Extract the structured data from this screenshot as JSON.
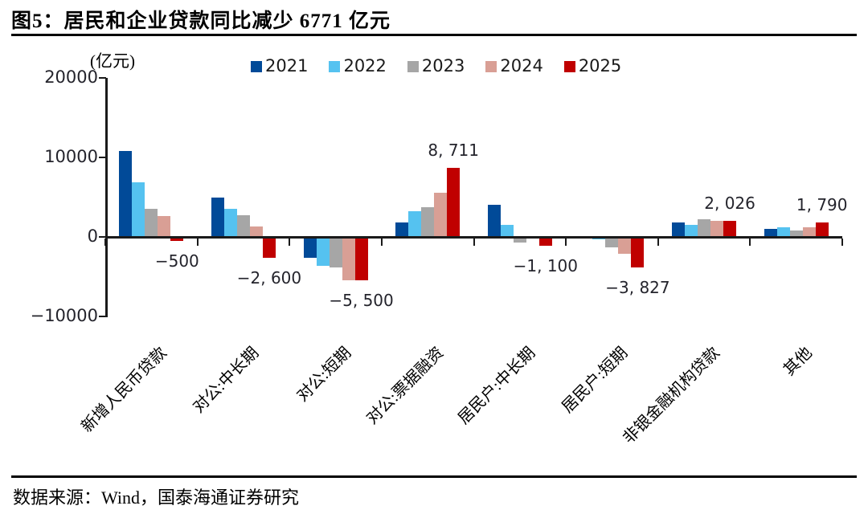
{
  "title": "图5：居民和企业贷款同比减少 6771 亿元",
  "source": "数据来源：Wind，国泰海通证券研究",
  "axis_unit": "(亿元)",
  "colors": {
    "y2021": "#014A98",
    "y2022": "#55C2F0",
    "y2023": "#A6A6A6",
    "y2024": "#D99F95",
    "y2025": "#C00000",
    "axis": "#1a1a1a"
  },
  "chart_data": {
    "type": "bar",
    "title": "图5：居民和企业贷款同比减少 6771 亿元",
    "ylabel": "(亿元)",
    "ylim": [
      -10000,
      20000
    ],
    "grid": false,
    "legend_position": "top-center",
    "yticks": [
      {
        "value": 20000,
        "label": "20000"
      },
      {
        "value": 10000,
        "label": "10000"
      },
      {
        "value": 0,
        "label": "0"
      },
      {
        "value": -10000,
        "label": "−10000"
      }
    ],
    "categories": [
      "新增人民币贷款",
      "对公:中长期",
      "对公:短期",
      "对公:票据融资",
      "居民户:中长期",
      "居民户:短期",
      "非银金融机构贷款",
      "其他"
    ],
    "series": [
      {
        "name": "2021",
        "color": "#014A98",
        "values": [
          10800,
          4900,
          -2600,
          1800,
          4000,
          100,
          1850,
          1000
        ]
      },
      {
        "name": "2022",
        "color": "#55C2F0",
        "values": [
          6900,
          3500,
          -3600,
          3200,
          1500,
          -300,
          1500,
          1200
        ]
      },
      {
        "name": "2023",
        "color": "#A6A6A6",
        "values": [
          3500,
          2700,
          -3800,
          3700,
          -700,
          -1300,
          2250,
          850
        ]
      },
      {
        "name": "2024",
        "color": "#D99F95",
        "values": [
          2600,
          1300,
          -5500,
          5600,
          100,
          -2100,
          2050,
          1200
        ]
      },
      {
        "name": "2025",
        "color": "#C00000",
        "values": [
          -500,
          -2600,
          -5500,
          8711,
          -1100,
          -3827,
          2026,
          1790
        ]
      }
    ],
    "annotations": [
      {
        "category_index": 0,
        "series_index": 4,
        "text": "−500",
        "position": "below"
      },
      {
        "category_index": 1,
        "series_index": 4,
        "text": "−2, 600",
        "position": "below"
      },
      {
        "category_index": 2,
        "series_index": 4,
        "text": "−5, 500",
        "position": "below"
      },
      {
        "category_index": 3,
        "series_index": 4,
        "text": "8, 711",
        "position": "above"
      },
      {
        "category_index": 4,
        "series_index": 4,
        "text": "−1, 100",
        "position": "below"
      },
      {
        "category_index": 5,
        "series_index": 4,
        "text": "−3, 827",
        "position": "below"
      },
      {
        "category_index": 6,
        "series_index": 4,
        "text": "2, 026",
        "position": "above"
      },
      {
        "category_index": 7,
        "series_index": 4,
        "text": "1, 790",
        "position": "above"
      }
    ]
  }
}
